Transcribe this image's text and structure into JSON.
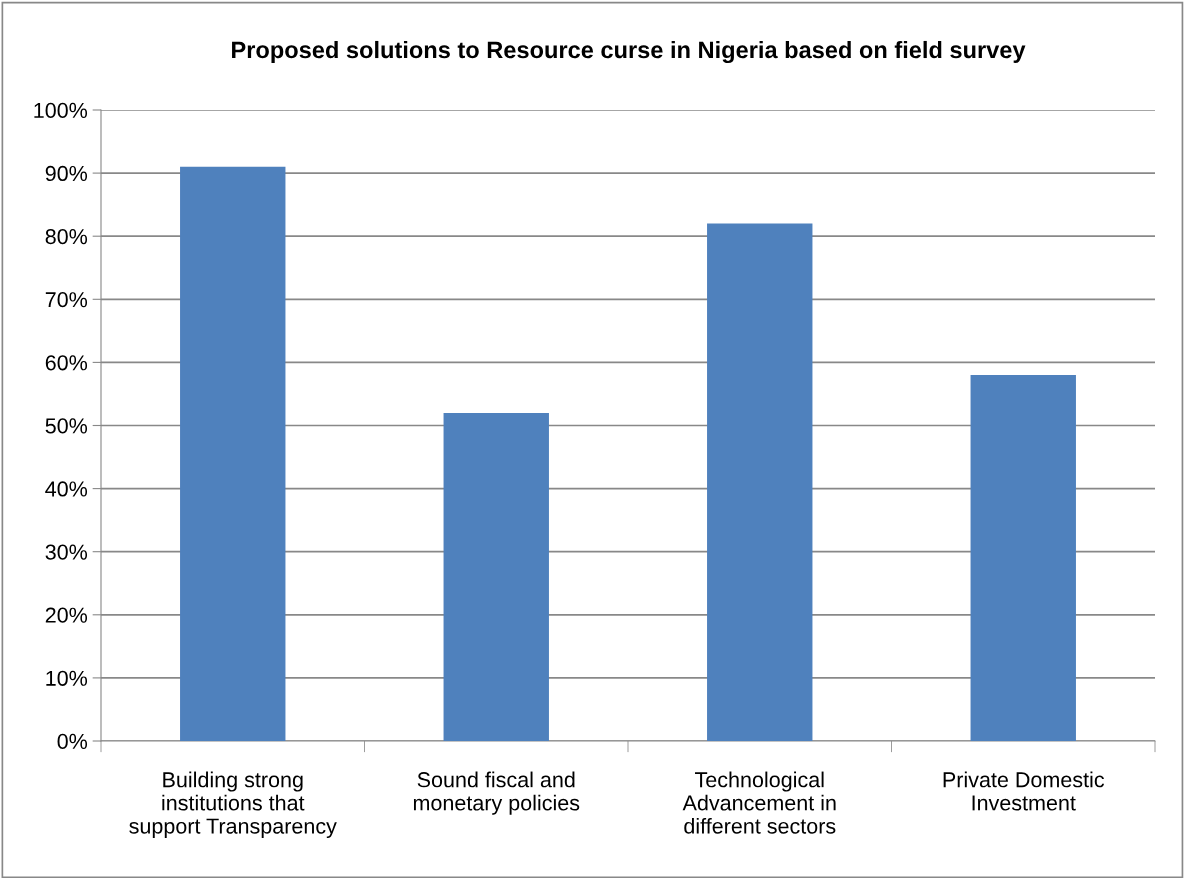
{
  "chart_data": {
    "type": "bar",
    "title": "Proposed solutions to Resource curse in Nigeria based on field survey",
    "categories": [
      "Building strong\ninstitutions that\nsupport Transparency",
      "Sound fiscal and\nmonetary policies",
      "Technological\nAdvancement in\ndifferent sectors",
      "Private Domestic\nInvestment"
    ],
    "values": [
      91,
      52,
      82,
      58
    ],
    "color": "#4f81bd",
    "ylim": [
      0,
      100
    ],
    "yticks": [
      {
        "value": 0,
        "label": "0%"
      },
      {
        "value": 10,
        "label": "10%"
      },
      {
        "value": 20,
        "label": "20%"
      },
      {
        "value": 30,
        "label": "30%"
      },
      {
        "value": 40,
        "label": "40%"
      },
      {
        "value": 50,
        "label": "50%"
      },
      {
        "value": 60,
        "label": "60%"
      },
      {
        "value": 70,
        "label": "70%"
      },
      {
        "value": 80,
        "label": "80%"
      },
      {
        "value": 90,
        "label": "90%"
      },
      {
        "value": 100,
        "label": "100%"
      }
    ],
    "grid": "y",
    "legend": false
  }
}
